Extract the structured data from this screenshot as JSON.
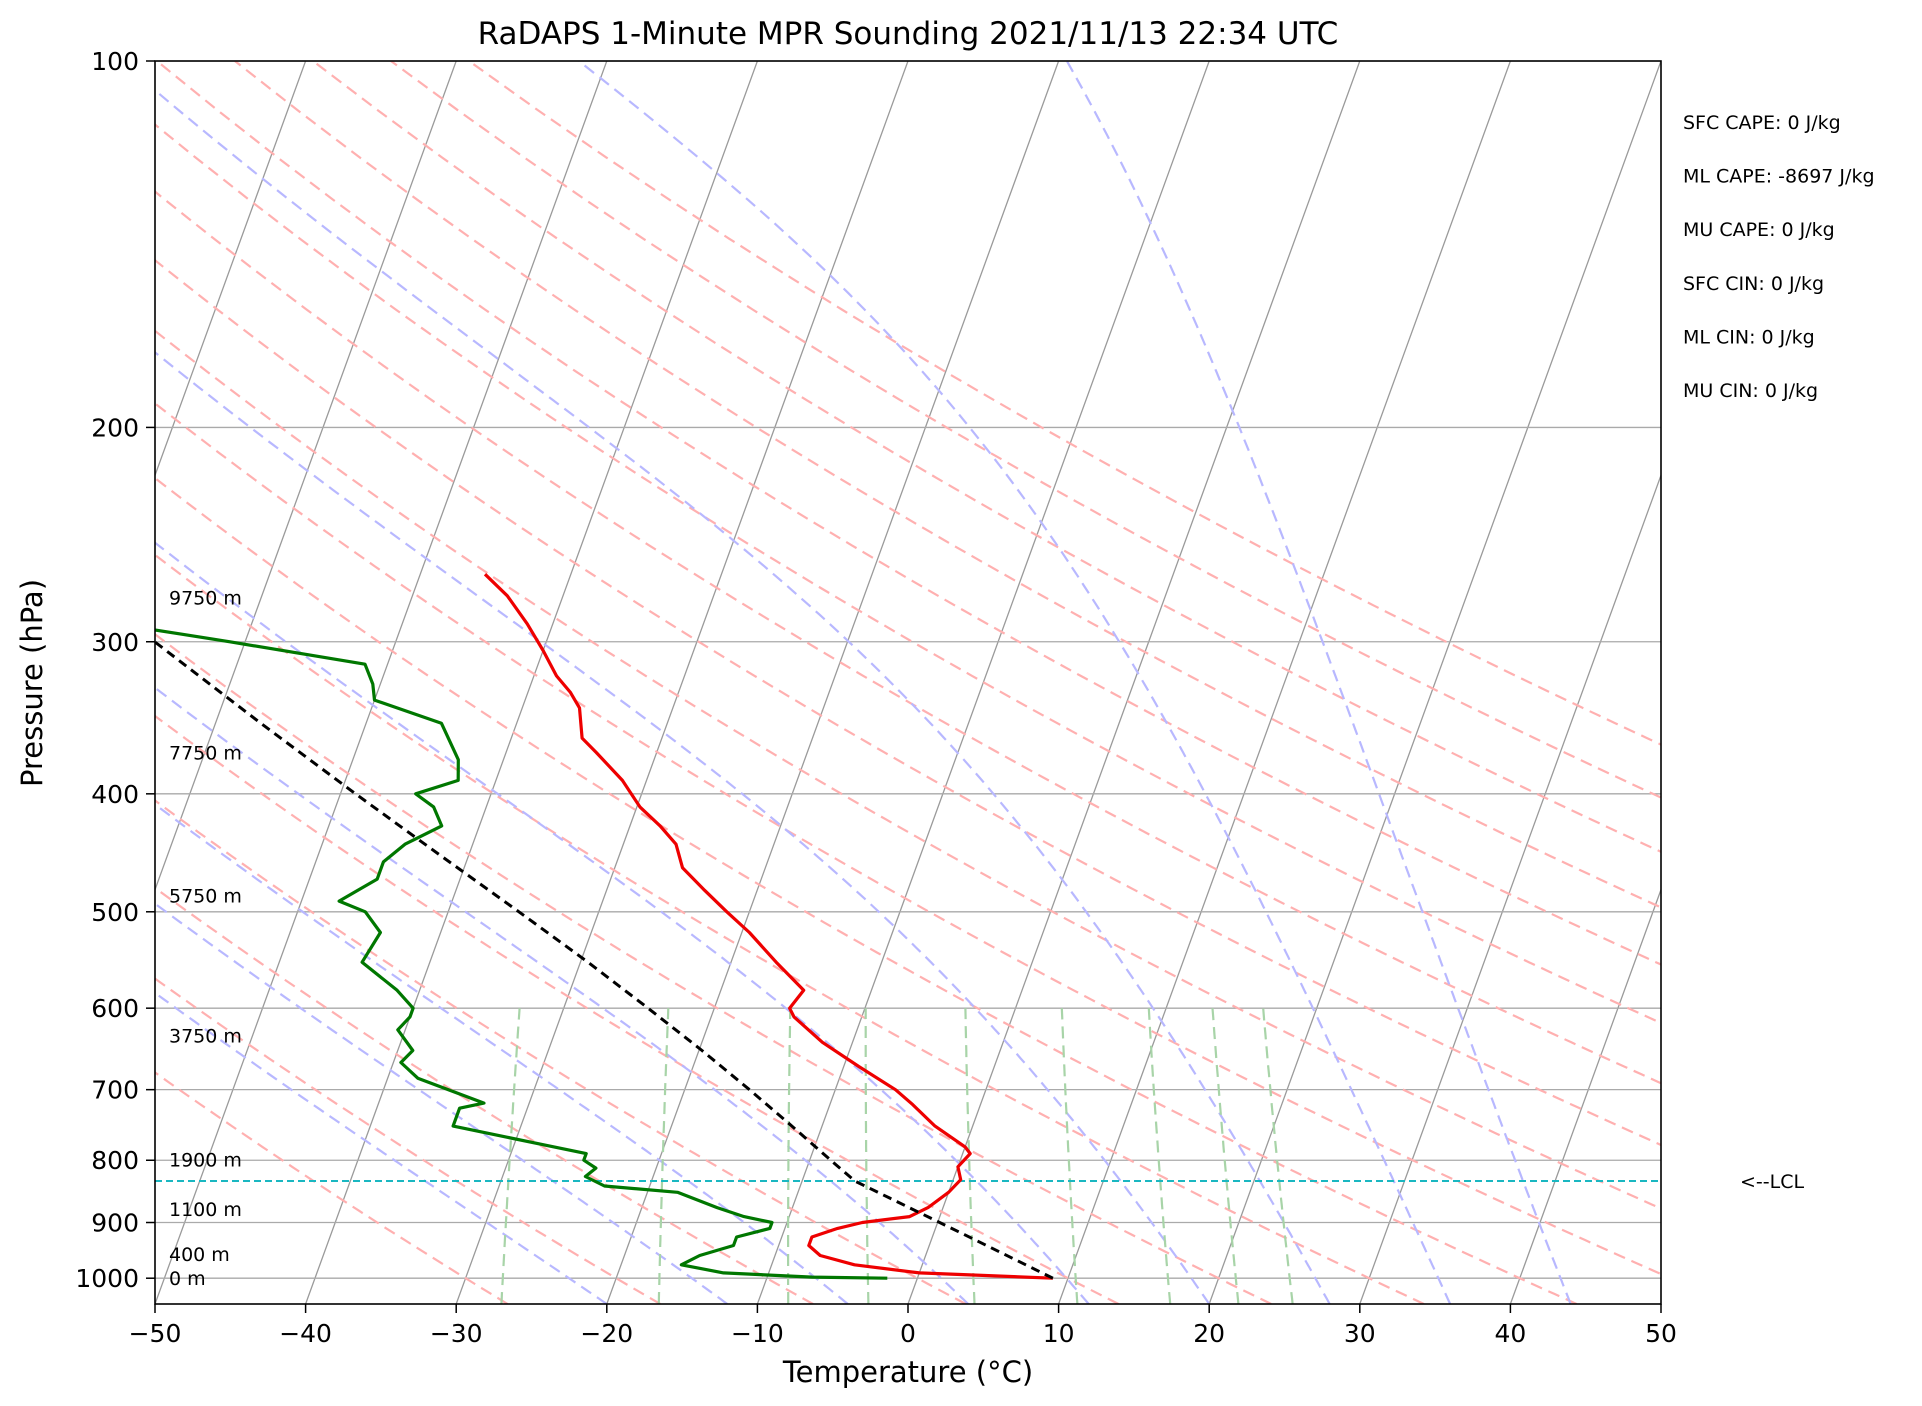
{
  "chart_data": {
    "type": "line",
    "subtype": "skew-T log-P diagram",
    "title": "RaDAPS 1-Minute MPR Sounding 2021/11/13 22:34 UTC",
    "xlabel": "Temperature (°C)",
    "ylabel": "Pressure (hPa)",
    "xlim": [
      -50,
      50
    ],
    "ylim": [
      1050,
      100
    ],
    "y_scale": "log",
    "x_ticks": [
      -50,
      -40,
      -30,
      -20,
      -10,
      0,
      10,
      20,
      30,
      40,
      50
    ],
    "x_tick_labels": [
      "−50",
      "−40",
      "−30",
      "−20",
      "−10",
      "0",
      "10",
      "20",
      "30",
      "40",
      "50"
    ],
    "y_ticks": [
      1000,
      900,
      800,
      700,
      600,
      500,
      400,
      300,
      200,
      100
    ],
    "y_tick_labels": [
      "1000",
      "900",
      "800",
      "700",
      "600",
      "500",
      "400",
      "300",
      "200",
      "100"
    ],
    "grid": true,
    "skew_factor": 30,
    "series": [
      {
        "role": "temperature",
        "color": "#ee0000",
        "points": [
          {
            "p": 1000,
            "t": 9.0
          },
          {
            "p": 990,
            "t": 0.0
          },
          {
            "p": 975,
            "t": -4.5
          },
          {
            "p": 958,
            "t": -7.0
          },
          {
            "p": 940,
            "t": -8.0
          },
          {
            "p": 925,
            "t": -8.0
          },
          {
            "p": 910,
            "t": -6.5
          },
          {
            "p": 900,
            "t": -5.0
          },
          {
            "p": 890,
            "t": -2.0
          },
          {
            "p": 875,
            "t": -1.0
          },
          {
            "p": 850,
            "t": 0.0
          },
          {
            "p": 830,
            "t": 0.5
          },
          {
            "p": 810,
            "t": 0.0
          },
          {
            "p": 790,
            "t": 0.5
          },
          {
            "p": 780,
            "t": 0.0
          },
          {
            "p": 750,
            "t": -2.5
          },
          {
            "p": 720,
            "t": -4.5
          },
          {
            "p": 700,
            "t": -6.0
          },
          {
            "p": 670,
            "t": -9.0
          },
          {
            "p": 640,
            "t": -12.0
          },
          {
            "p": 610,
            "t": -14.5
          },
          {
            "p": 600,
            "t": -15.0
          },
          {
            "p": 580,
            "t": -14.5
          },
          {
            "p": 550,
            "t": -17.0
          },
          {
            "p": 520,
            "t": -19.5
          },
          {
            "p": 500,
            "t": -21.5
          },
          {
            "p": 480,
            "t": -23.5
          },
          {
            "p": 460,
            "t": -25.5
          },
          {
            "p": 440,
            "t": -26.5
          },
          {
            "p": 425,
            "t": -28.0
          },
          {
            "p": 410,
            "t": -29.8
          },
          {
            "p": 390,
            "t": -31.6
          },
          {
            "p": 370,
            "t": -34.0
          },
          {
            "p": 360,
            "t": -35.3
          },
          {
            "p": 340,
            "t": -36.2
          },
          {
            "p": 330,
            "t": -37.2
          },
          {
            "p": 320,
            "t": -38.5
          },
          {
            "p": 305,
            "t": -40.0
          },
          {
            "p": 290,
            "t": -41.7
          },
          {
            "p": 275,
            "t": -43.7
          },
          {
            "p": 264,
            "t": -45.7
          }
        ]
      },
      {
        "role": "dewpoint",
        "color": "#007700",
        "points": [
          {
            "p": 1000,
            "t": -2.0
          },
          {
            "p": 998,
            "t": -7.0
          },
          {
            "p": 990,
            "t": -13.0
          },
          {
            "p": 975,
            "t": -16.0
          },
          {
            "p": 958,
            "t": -15.0
          },
          {
            "p": 940,
            "t": -13.0
          },
          {
            "p": 925,
            "t": -13.0
          },
          {
            "p": 910,
            "t": -11.0
          },
          {
            "p": 900,
            "t": -11.0
          },
          {
            "p": 890,
            "t": -13.0
          },
          {
            "p": 875,
            "t": -15.0
          },
          {
            "p": 850,
            "t": -18.0
          },
          {
            "p": 840,
            "t": -23.0
          },
          {
            "p": 825,
            "t": -24.5
          },
          {
            "p": 812,
            "t": -24.0
          },
          {
            "p": 800,
            "t": -25.0
          },
          {
            "p": 790,
            "t": -25.0
          },
          {
            "p": 750,
            "t": -34.5
          },
          {
            "p": 725,
            "t": -34.5
          },
          {
            "p": 718,
            "t": -33.0
          },
          {
            "p": 685,
            "t": -38.0
          },
          {
            "p": 665,
            "t": -39.5
          },
          {
            "p": 650,
            "t": -39.0
          },
          {
            "p": 625,
            "t": -40.5
          },
          {
            "p": 610,
            "t": -40.0
          },
          {
            "p": 600,
            "t": -40.0
          },
          {
            "p": 580,
            "t": -41.5
          },
          {
            "p": 550,
            "t": -44.5
          },
          {
            "p": 520,
            "t": -44.0
          },
          {
            "p": 500,
            "t": -45.5
          },
          {
            "p": 490,
            "t": -47.5
          },
          {
            "p": 470,
            "t": -45.5
          },
          {
            "p": 455,
            "t": -45.5
          },
          {
            "p": 440,
            "t": -44.5
          },
          {
            "p": 425,
            "t": -42.5
          },
          {
            "p": 410,
            "t": -43.5
          },
          {
            "p": 400,
            "t": -45.0
          },
          {
            "p": 390,
            "t": -42.5
          },
          {
            "p": 375,
            "t": -43.0
          },
          {
            "p": 350,
            "t": -45.0
          },
          {
            "p": 335,
            "t": -50.0
          },
          {
            "p": 325,
            "t": -50.5
          },
          {
            "p": 313,
            "t": -51.5
          },
          {
            "p": 300,
            "t": -61.0
          },
          {
            "p": 290,
            "t": -69.0
          },
          {
            "p": 290,
            "t": -73.0
          }
        ]
      },
      {
        "role": "parcel profile",
        "color": "#000000",
        "dashed": true,
        "points": [
          {
            "p": 1000,
            "t": 9.0
          },
          {
            "p": 930,
            "t": 2.9
          },
          {
            "p": 832,
            "t": -6.5
          },
          {
            "p": 800,
            "t": -8.6
          },
          {
            "p": 750,
            "t": -12.0
          },
          {
            "p": 700,
            "t": -15.7
          },
          {
            "p": 650,
            "t": -19.8
          },
          {
            "p": 600,
            "t": -24.4
          },
          {
            "p": 550,
            "t": -29.5
          },
          {
            "p": 500,
            "t": -35.3
          },
          {
            "p": 450,
            "t": -41.8
          },
          {
            "p": 400,
            "t": -49.0
          },
          {
            "p": 350,
            "t": -57.0
          },
          {
            "p": 300,
            "t": -66.0
          },
          {
            "p": 264,
            "t": -73.0
          }
        ]
      }
    ],
    "lcl_hpa": 832,
    "lcl_label": "<--LCL",
    "height_labels": [
      {
        "label": "0 m",
        "p": 1000
      },
      {
        "label": "400 m",
        "p": 955
      },
      {
        "label": "1100 m",
        "p": 877
      },
      {
        "label": "1900 m",
        "p": 799
      },
      {
        "label": "3750 m",
        "p": 632
      },
      {
        "label": "5750 m",
        "p": 485
      },
      {
        "label": "7750 m",
        "p": 370
      },
      {
        "label": "9750 m",
        "p": 276
      }
    ],
    "indices": [
      "SFC CAPE: 0 J/kg",
      "ML CAPE: -8697 J/kg",
      "MU CAPE: 0 J/kg",
      "SFC CIN: 0 J/kg",
      "ML CIN: 0 J/kg",
      "MU CIN: 0 J/kg"
    ],
    "dry_adiabats_theta_c": [
      -30,
      -20,
      -10,
      0,
      10,
      20,
      30,
      40,
      50,
      60,
      70,
      80,
      90,
      100,
      110,
      120,
      130,
      140
    ],
    "moist_adiabats_start_c": [
      -20,
      -12,
      -4,
      4,
      12,
      20,
      28,
      36,
      44
    ],
    "mixing_ratio_lines_gkg": [
      0.4,
      1,
      2,
      3,
      5,
      8,
      12,
      16,
      20
    ],
    "colors": {
      "temperature": "#ee0000",
      "dewpoint": "#007700",
      "parcel": "#000000",
      "dry_adiabats": "#ffb0b0",
      "moist_adiabats": "#b8b8ff",
      "mixing_ratio": "#a8d4a8",
      "isotherms": "#9a9a9a",
      "isobars": "#aaaaaa",
      "lcl": "#1ab7c1"
    }
  }
}
